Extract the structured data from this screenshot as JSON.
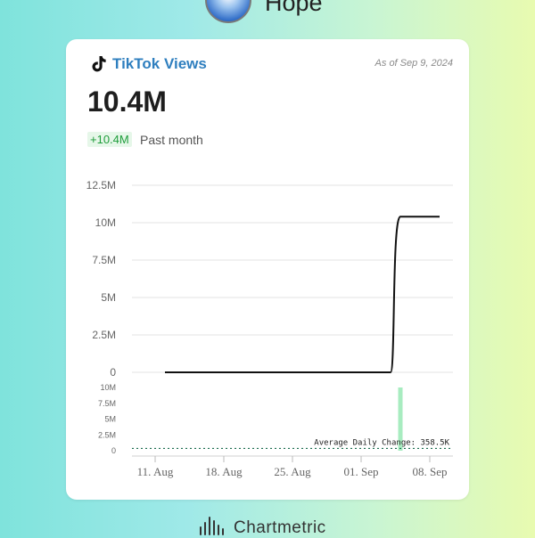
{
  "header": {
    "artist_name": "Hope",
    "avatar_icon": "artist-avatar"
  },
  "card": {
    "title": "TikTok Views",
    "as_of": "As of Sep 9, 2024",
    "value": "10.4M",
    "change": "+10.4M",
    "change_label": "Past month",
    "icon": "tiktok-icon"
  },
  "footer": {
    "brand": "Chartmetric",
    "icon": "chartmetric-logo-icon"
  },
  "chart_data": {
    "type": "line",
    "title": "",
    "xlabel": "",
    "ylabel": "",
    "x_ticks": [
      "11. Aug",
      "18. Aug",
      "25. Aug",
      "01. Sep",
      "08. Sep"
    ],
    "y_ticks": [
      "12.5M",
      "10M",
      "7.5M",
      "5M",
      "2.5M",
      "0"
    ],
    "ylim": [
      0,
      12500000
    ],
    "series": [
      {
        "x": [
          "2024-08-12",
          "2024-09-04",
          "2024-09-05",
          "2024-09-06",
          "2024-09-07",
          "2024-09-08",
          "2024-09-09"
        ],
        "values": [
          0,
          0,
          10400000,
          10400000,
          10400000,
          10400000,
          10400000
        ]
      }
    ],
    "daily_change": {
      "type": "bar",
      "y_ticks": [
        "10M",
        "7.5M",
        "5M",
        "2.5M",
        "0"
      ],
      "ylim": [
        0,
        10000000
      ],
      "bars": [
        {
          "x": "2024-09-05",
          "value": 10400000
        }
      ],
      "average_label": "Average Daily Change: 358.5K",
      "average_value": 358500
    },
    "line_color": "#111111",
    "bar_color": "#a8ecc0",
    "grid": true
  }
}
